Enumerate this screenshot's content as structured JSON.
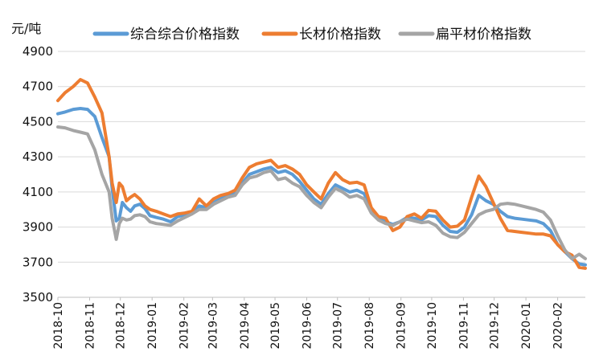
{
  "chart_data": {
    "type": "line",
    "ylabel": "元/吨",
    "ylim": [
      3500,
      4900
    ],
    "yticks": [
      3500,
      3700,
      3900,
      4100,
      4300,
      4500,
      4700,
      4900
    ],
    "x_range": [
      "2018-10-01",
      "2020-02-28"
    ],
    "x_tick_labels": [
      "2018-10",
      "2018-11",
      "2018-12",
      "2019-01",
      "2019-02",
      "2019-03",
      "2019-04",
      "2019-05",
      "2019-06",
      "2019-07",
      "2019-08",
      "2019-09",
      "2019-10",
      "2019-11",
      "2019-12",
      "2020-01",
      "2020-02"
    ],
    "grid": "horizontal",
    "legend_position": "top",
    "series": [
      {
        "name": "综合综合价格指数",
        "color": "#5B9BD5",
        "points": [
          [
            "2018-10-01",
            4545
          ],
          [
            "2018-10-08",
            4555
          ],
          [
            "2018-10-16",
            4570
          ],
          [
            "2018-10-23",
            4575
          ],
          [
            "2018-10-30",
            4570
          ],
          [
            "2018-11-06",
            4530
          ],
          [
            "2018-11-13",
            4410
          ],
          [
            "2018-11-20",
            4300
          ],
          [
            "2018-11-23",
            4120
          ],
          [
            "2018-11-27",
            3935
          ],
          [
            "2018-11-30",
            3950
          ],
          [
            "2018-12-03",
            4040
          ],
          [
            "2018-12-07",
            4010
          ],
          [
            "2018-12-11",
            3990
          ],
          [
            "2018-12-15",
            4020
          ],
          [
            "2018-12-20",
            4030
          ],
          [
            "2018-12-25",
            4005
          ],
          [
            "2018-12-30",
            3965
          ],
          [
            "2019-01-05",
            3955
          ],
          [
            "2019-01-12",
            3945
          ],
          [
            "2019-01-19",
            3930
          ],
          [
            "2019-01-26",
            3960
          ],
          [
            "2019-02-02",
            3970
          ],
          [
            "2019-02-09",
            3985
          ],
          [
            "2019-02-16",
            4020
          ],
          [
            "2019-02-23",
            4010
          ],
          [
            "2019-03-02",
            4040
          ],
          [
            "2019-03-09",
            4060
          ],
          [
            "2019-03-16",
            4080
          ],
          [
            "2019-03-23",
            4090
          ],
          [
            "2019-03-30",
            4150
          ],
          [
            "2019-04-06",
            4200
          ],
          [
            "2019-04-13",
            4215
          ],
          [
            "2019-04-20",
            4230
          ],
          [
            "2019-04-27",
            4240
          ],
          [
            "2019-05-04",
            4210
          ],
          [
            "2019-05-11",
            4220
          ],
          [
            "2019-05-18",
            4200
          ],
          [
            "2019-05-25",
            4160
          ],
          [
            "2019-06-01",
            4110
          ],
          [
            "2019-06-08",
            4060
          ],
          [
            "2019-06-15",
            4030
          ],
          [
            "2019-06-22",
            4090
          ],
          [
            "2019-06-29",
            4140
          ],
          [
            "2019-07-06",
            4120
          ],
          [
            "2019-07-13",
            4100
          ],
          [
            "2019-07-20",
            4110
          ],
          [
            "2019-07-27",
            4090
          ],
          [
            "2019-08-03",
            4000
          ],
          [
            "2019-08-10",
            3960
          ],
          [
            "2019-08-17",
            3930
          ],
          [
            "2019-08-24",
            3915
          ],
          [
            "2019-08-31",
            3930
          ],
          [
            "2019-09-07",
            3955
          ],
          [
            "2019-09-14",
            3950
          ],
          [
            "2019-09-21",
            3940
          ],
          [
            "2019-09-28",
            3965
          ],
          [
            "2019-10-05",
            3960
          ],
          [
            "2019-10-12",
            3910
          ],
          [
            "2019-10-19",
            3875
          ],
          [
            "2019-10-26",
            3870
          ],
          [
            "2019-11-02",
            3900
          ],
          [
            "2019-11-09",
            3970
          ],
          [
            "2019-11-16",
            4080
          ],
          [
            "2019-11-23",
            4050
          ],
          [
            "2019-11-30",
            4030
          ],
          [
            "2019-12-07",
            3990
          ],
          [
            "2019-12-14",
            3960
          ],
          [
            "2019-12-21",
            3950
          ],
          [
            "2019-12-28",
            3945
          ],
          [
            "2020-01-04",
            3940
          ],
          [
            "2020-01-11",
            3935
          ],
          [
            "2020-01-18",
            3920
          ],
          [
            "2020-01-25",
            3880
          ],
          [
            "2020-02-01",
            3800
          ],
          [
            "2020-02-08",
            3760
          ],
          [
            "2020-02-15",
            3720
          ],
          [
            "2020-02-22",
            3690
          ],
          [
            "2020-02-28",
            3685
          ]
        ]
      },
      {
        "name": "长材价格指数",
        "color": "#ED7D31",
        "points": [
          [
            "2018-10-01",
            4620
          ],
          [
            "2018-10-08",
            4665
          ],
          [
            "2018-10-16",
            4700
          ],
          [
            "2018-10-23",
            4740
          ],
          [
            "2018-10-30",
            4720
          ],
          [
            "2018-11-06",
            4640
          ],
          [
            "2018-11-13",
            4550
          ],
          [
            "2018-11-20",
            4300
          ],
          [
            "2018-11-23",
            4150
          ],
          [
            "2018-11-27",
            4040
          ],
          [
            "2018-11-30",
            4150
          ],
          [
            "2018-12-03",
            4130
          ],
          [
            "2018-12-07",
            4050
          ],
          [
            "2018-12-11",
            4070
          ],
          [
            "2018-12-15",
            4085
          ],
          [
            "2018-12-20",
            4060
          ],
          [
            "2018-12-25",
            4020
          ],
          [
            "2018-12-30",
            4000
          ],
          [
            "2019-01-05",
            3990
          ],
          [
            "2019-01-12",
            3975
          ],
          [
            "2019-01-19",
            3960
          ],
          [
            "2019-01-26",
            3975
          ],
          [
            "2019-02-02",
            3980
          ],
          [
            "2019-02-09",
            3990
          ],
          [
            "2019-02-16",
            4060
          ],
          [
            "2019-02-23",
            4020
          ],
          [
            "2019-03-02",
            4060
          ],
          [
            "2019-03-09",
            4080
          ],
          [
            "2019-03-16",
            4090
          ],
          [
            "2019-03-23",
            4110
          ],
          [
            "2019-03-30",
            4180
          ],
          [
            "2019-04-06",
            4240
          ],
          [
            "2019-04-13",
            4260
          ],
          [
            "2019-04-20",
            4270
          ],
          [
            "2019-04-27",
            4280
          ],
          [
            "2019-05-04",
            4240
          ],
          [
            "2019-05-11",
            4250
          ],
          [
            "2019-05-18",
            4230
          ],
          [
            "2019-05-25",
            4200
          ],
          [
            "2019-06-01",
            4140
          ],
          [
            "2019-06-08",
            4100
          ],
          [
            "2019-06-15",
            4060
          ],
          [
            "2019-06-22",
            4150
          ],
          [
            "2019-06-29",
            4210
          ],
          [
            "2019-07-06",
            4170
          ],
          [
            "2019-07-13",
            4150
          ],
          [
            "2019-07-20",
            4155
          ],
          [
            "2019-07-27",
            4140
          ],
          [
            "2019-08-03",
            4010
          ],
          [
            "2019-08-10",
            3960
          ],
          [
            "2019-08-17",
            3950
          ],
          [
            "2019-08-24",
            3880
          ],
          [
            "2019-08-31",
            3900
          ],
          [
            "2019-09-07",
            3960
          ],
          [
            "2019-09-14",
            3975
          ],
          [
            "2019-09-21",
            3950
          ],
          [
            "2019-09-28",
            3995
          ],
          [
            "2019-10-05",
            3990
          ],
          [
            "2019-10-12",
            3940
          ],
          [
            "2019-10-19",
            3900
          ],
          [
            "2019-10-26",
            3905
          ],
          [
            "2019-11-02",
            3940
          ],
          [
            "2019-11-09",
            4070
          ],
          [
            "2019-11-16",
            4190
          ],
          [
            "2019-11-23",
            4130
          ],
          [
            "2019-11-30",
            4040
          ],
          [
            "2019-12-07",
            3950
          ],
          [
            "2019-12-14",
            3880
          ],
          [
            "2019-12-21",
            3875
          ],
          [
            "2019-12-28",
            3870
          ],
          [
            "2020-01-04",
            3865
          ],
          [
            "2020-01-11",
            3860
          ],
          [
            "2020-01-18",
            3860
          ],
          [
            "2020-01-25",
            3850
          ],
          [
            "2020-02-01",
            3800
          ],
          [
            "2020-02-08",
            3760
          ],
          [
            "2020-02-15",
            3740
          ],
          [
            "2020-02-22",
            3670
          ],
          [
            "2020-02-28",
            3665
          ]
        ]
      },
      {
        "name": "扁平材价格指数",
        "color": "#A5A5A5",
        "points": [
          [
            "2018-10-01",
            4470
          ],
          [
            "2018-10-08",
            4465
          ],
          [
            "2018-10-16",
            4450
          ],
          [
            "2018-10-23",
            4440
          ],
          [
            "2018-10-30",
            4430
          ],
          [
            "2018-11-06",
            4340
          ],
          [
            "2018-11-13",
            4200
          ],
          [
            "2018-11-20",
            4100
          ],
          [
            "2018-11-23",
            3950
          ],
          [
            "2018-11-27",
            3830
          ],
          [
            "2018-11-30",
            3920
          ],
          [
            "2018-12-03",
            3950
          ],
          [
            "2018-12-07",
            3940
          ],
          [
            "2018-12-11",
            3945
          ],
          [
            "2018-12-15",
            3965
          ],
          [
            "2018-12-20",
            3970
          ],
          [
            "2018-12-25",
            3960
          ],
          [
            "2018-12-30",
            3930
          ],
          [
            "2019-01-05",
            3920
          ],
          [
            "2019-01-12",
            3915
          ],
          [
            "2019-01-19",
            3910
          ],
          [
            "2019-01-26",
            3935
          ],
          [
            "2019-02-02",
            3955
          ],
          [
            "2019-02-09",
            3975
          ],
          [
            "2019-02-16",
            4000
          ],
          [
            "2019-02-23",
            4000
          ],
          [
            "2019-03-02",
            4030
          ],
          [
            "2019-03-09",
            4050
          ],
          [
            "2019-03-16",
            4070
          ],
          [
            "2019-03-23",
            4080
          ],
          [
            "2019-03-30",
            4140
          ],
          [
            "2019-04-06",
            4180
          ],
          [
            "2019-04-13",
            4190
          ],
          [
            "2019-04-20",
            4210
          ],
          [
            "2019-04-27",
            4220
          ],
          [
            "2019-05-04",
            4170
          ],
          [
            "2019-05-11",
            4180
          ],
          [
            "2019-05-18",
            4150
          ],
          [
            "2019-05-25",
            4130
          ],
          [
            "2019-06-01",
            4080
          ],
          [
            "2019-06-08",
            4040
          ],
          [
            "2019-06-15",
            4010
          ],
          [
            "2019-06-22",
            4070
          ],
          [
            "2019-06-29",
            4120
          ],
          [
            "2019-07-06",
            4100
          ],
          [
            "2019-07-13",
            4070
          ],
          [
            "2019-07-20",
            4080
          ],
          [
            "2019-07-27",
            4060
          ],
          [
            "2019-08-03",
            3980
          ],
          [
            "2019-08-10",
            3940
          ],
          [
            "2019-08-17",
            3920
          ],
          [
            "2019-08-24",
            3910
          ],
          [
            "2019-08-31",
            3930
          ],
          [
            "2019-09-07",
            3945
          ],
          [
            "2019-09-14",
            3935
          ],
          [
            "2019-09-21",
            3925
          ],
          [
            "2019-09-28",
            3930
          ],
          [
            "2019-10-05",
            3910
          ],
          [
            "2019-10-12",
            3865
          ],
          [
            "2019-10-19",
            3845
          ],
          [
            "2019-10-26",
            3840
          ],
          [
            "2019-11-02",
            3870
          ],
          [
            "2019-11-09",
            3920
          ],
          [
            "2019-11-16",
            3970
          ],
          [
            "2019-11-23",
            3990
          ],
          [
            "2019-11-30",
            4000
          ],
          [
            "2019-12-07",
            4030
          ],
          [
            "2019-12-14",
            4035
          ],
          [
            "2019-12-21",
            4030
          ],
          [
            "2019-12-28",
            4020
          ],
          [
            "2020-01-04",
            4010
          ],
          [
            "2020-01-11",
            4000
          ],
          [
            "2020-01-18",
            3985
          ],
          [
            "2020-01-25",
            3940
          ],
          [
            "2020-02-01",
            3850
          ],
          [
            "2020-02-08",
            3770
          ],
          [
            "2020-02-15",
            3720
          ],
          [
            "2020-02-22",
            3745
          ],
          [
            "2020-02-28",
            3720
          ]
        ]
      }
    ]
  }
}
